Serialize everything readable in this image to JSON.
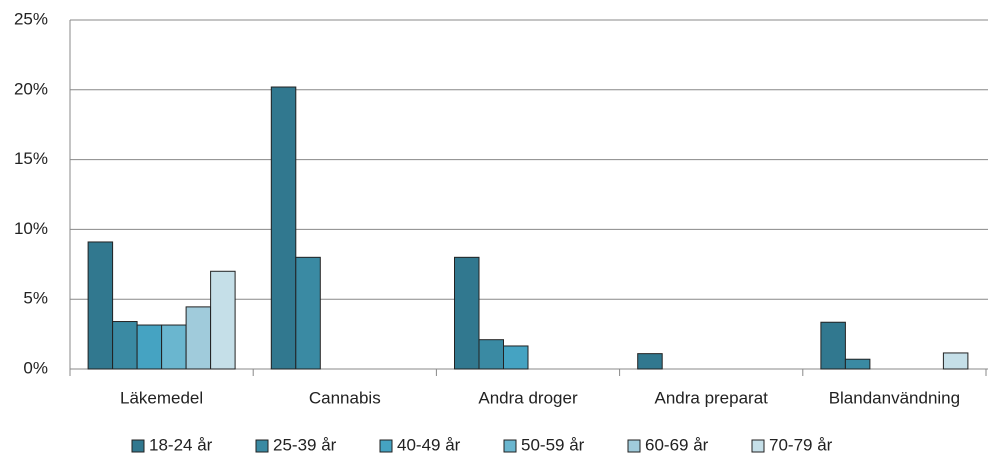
{
  "chart_data": {
    "type": "bar",
    "categories": [
      "Läkemedel",
      "Cannabis",
      "Andra droger",
      "Andra preparat",
      "Blandanvändning"
    ],
    "series": [
      {
        "name": "18-24 år",
        "color": "#31788f",
        "values": [
          9.1,
          20.2,
          8.0,
          1.1,
          3.35
        ]
      },
      {
        "name": "25-39 år",
        "color": "#3a8aa3",
        "values": [
          3.4,
          8.0,
          2.1,
          0,
          0.7
        ]
      },
      {
        "name": "40-49 år",
        "color": "#45a3c2",
        "values": [
          3.15,
          0,
          1.65,
          0,
          0
        ]
      },
      {
        "name": "50-59 år",
        "color": "#6ab6cf",
        "values": [
          3.15,
          0,
          0,
          0,
          0
        ]
      },
      {
        "name": "60-69 år",
        "color": "#a0cbdb",
        "values": [
          4.45,
          0,
          0,
          0,
          0
        ]
      },
      {
        "name": "70-79 år",
        "color": "#c5dfe8",
        "values": [
          7.0,
          0,
          0,
          0,
          1.15
        ]
      }
    ],
    "ylim": [
      0,
      25
    ],
    "yticks": [
      {
        "value": 0,
        "label": "0%"
      },
      {
        "value": 5,
        "label": "5%"
      },
      {
        "value": 10,
        "label": "10%"
      },
      {
        "value": 15,
        "label": "15%"
      },
      {
        "value": 20,
        "label": "20%"
      },
      {
        "value": 25,
        "label": "25%"
      }
    ],
    "grid": true,
    "legend": "bottom"
  }
}
